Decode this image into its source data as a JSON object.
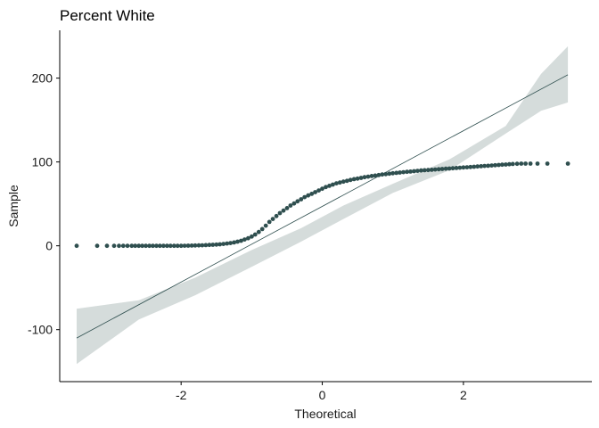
{
  "chart_data": {
    "type": "scatter",
    "subtype": "qq-plot",
    "title": "Percent White",
    "xlabel": "Theoretical",
    "ylabel": "Sample",
    "xlim": [
      -3.72,
      3.82
    ],
    "ylim": [
      -162,
      257
    ],
    "x_ticks": [
      -2,
      0,
      2
    ],
    "x_tick_labels": [
      "-2",
      "0",
      "2"
    ],
    "y_ticks": [
      -100,
      0,
      100,
      200
    ],
    "y_tick_labels": [
      "-100",
      "0",
      "100",
      "200"
    ],
    "grid": false,
    "legend": "none",
    "colors": {
      "points": "#2f4f4f",
      "line": "#2f4f4f",
      "band": "#d5dcdb",
      "axis": "#000000"
    },
    "reference_line": {
      "x": [
        -3.48,
        3.48
      ],
      "y": [
        -110,
        204
      ]
    },
    "confidence_band": {
      "x": [
        -3.48,
        -2.6,
        -1.8,
        -1.0,
        -0.3,
        0.3,
        1.0,
        1.8,
        2.6,
        3.1,
        3.48
      ],
      "lower": [
        -141,
        -88,
        -59,
        -25,
        5,
        32,
        63,
        90,
        134,
        161,
        171
      ],
      "upper": [
        -75,
        -65,
        -38,
        -5,
        21,
        48,
        74,
        103,
        143,
        205,
        238
      ]
    },
    "points": {
      "x": [
        -3.48,
        -3.19,
        -3.05,
        -2.95,
        -2.88,
        -2.82,
        -2.76,
        -2.7,
        -2.65,
        -2.6,
        -2.55,
        -2.5,
        -2.45,
        -2.4,
        -2.35,
        -2.3,
        -2.25,
        -2.2,
        -2.15,
        -2.1,
        -2.05,
        -2.0,
        -1.95,
        -1.9,
        -1.85,
        -1.8,
        -1.75,
        -1.7,
        -1.65,
        -1.6,
        -1.55,
        -1.5,
        -1.45,
        -1.4,
        -1.35,
        -1.3,
        -1.25,
        -1.2,
        -1.15,
        -1.1,
        -1.05,
        -1.0,
        -0.95,
        -0.9,
        -0.85,
        -0.8,
        -0.75,
        -0.7,
        -0.65,
        -0.6,
        -0.55,
        -0.5,
        -0.45,
        -0.4,
        -0.35,
        -0.3,
        -0.25,
        -0.2,
        -0.15,
        -0.1,
        -0.05,
        0.0,
        0.05,
        0.1,
        0.15,
        0.2,
        0.25,
        0.3,
        0.35,
        0.4,
        0.45,
        0.5,
        0.55,
        0.6,
        0.65,
        0.7,
        0.75,
        0.8,
        0.85,
        0.9,
        0.95,
        1.0,
        1.05,
        1.1,
        1.15,
        1.2,
        1.25,
        1.3,
        1.35,
        1.4,
        1.45,
        1.5,
        1.55,
        1.6,
        1.65,
        1.7,
        1.75,
        1.8,
        1.85,
        1.9,
        1.95,
        2.0,
        2.05,
        2.1,
        2.15,
        2.2,
        2.25,
        2.3,
        2.35,
        2.4,
        2.45,
        2.5,
        2.55,
        2.6,
        2.65,
        2.7,
        2.76,
        2.82,
        2.88,
        2.95,
        3.05,
        3.19,
        3.48
      ],
      "y": [
        0,
        0,
        0,
        0,
        0,
        0,
        0,
        0,
        0,
        0,
        0,
        0,
        0,
        0,
        0,
        0,
        0,
        0,
        0,
        0,
        0,
        0,
        0.1,
        0.2,
        0.3,
        0.4,
        0.5,
        0.6,
        0.8,
        1,
        1.2,
        1.5,
        1.8,
        2.2,
        2.7,
        3.3,
        4,
        5,
        6,
        7.5,
        9,
        11,
        13.5,
        16.5,
        20,
        24,
        28.5,
        32,
        35.5,
        39,
        42,
        45,
        48,
        50.5,
        53,
        55.5,
        58,
        60,
        62,
        64,
        66,
        68,
        70,
        71.5,
        73,
        74.5,
        75.5,
        76.5,
        77.5,
        78.5,
        79.5,
        80.2,
        81,
        81.8,
        82.5,
        83.2,
        83.8,
        84.4,
        85,
        85.5,
        86,
        86.5,
        87,
        87.4,
        87.8,
        88.2,
        88.6,
        89,
        89.4,
        89.8,
        90.1,
        90.4,
        90.7,
        91,
        91.3,
        91.6,
        91.9,
        92.2,
        92.5,
        92.8,
        93.1,
        93.4,
        93.7,
        94,
        94.3,
        94.6,
        94.9,
        95.2,
        95.5,
        95.8,
        96.1,
        96.4,
        96.7,
        97,
        97.3,
        97.6,
        97.8,
        98,
        98,
        98,
        98,
        98,
        98
      ]
    }
  }
}
